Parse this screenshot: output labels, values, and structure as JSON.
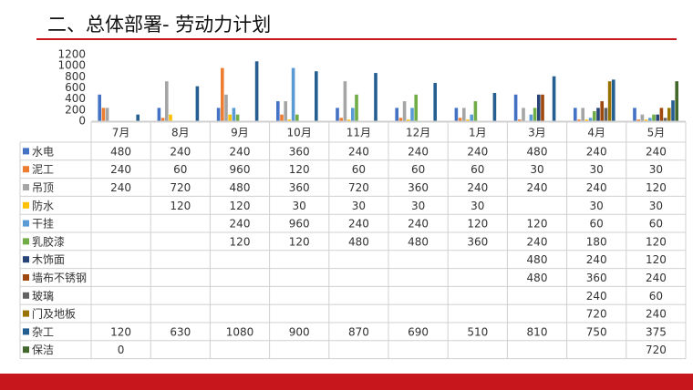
{
  "slide": {
    "title": "二、总体部署- 劳动力计划"
  },
  "chart_data": {
    "type": "bar",
    "categories": [
      "7月",
      "8月",
      "9月",
      "10月",
      "11月",
      "12月",
      "1月",
      "3月",
      "4月",
      "5月"
    ],
    "y_ticks": [
      "0",
      "200",
      "400",
      "600",
      "800",
      "1000",
      "1200"
    ],
    "ylim": [
      0,
      1200
    ],
    "grid": false,
    "legend": "table-left",
    "series": [
      {
        "name": "水电",
        "color": "#4472c4",
        "values": [
          480,
          240,
          240,
          360,
          240,
          240,
          240,
          480,
          240,
          240
        ]
      },
      {
        "name": "泥工",
        "color": "#ed7d31",
        "values": [
          240,
          60,
          960,
          120,
          60,
          60,
          60,
          30,
          30,
          30
        ]
      },
      {
        "name": "吊顶",
        "color": "#a5a5a5",
        "values": [
          240,
          720,
          480,
          360,
          720,
          360,
          240,
          240,
          240,
          120
        ]
      },
      {
        "name": "防水",
        "color": "#ffc000",
        "values": [
          null,
          120,
          120,
          30,
          30,
          30,
          30,
          null,
          30,
          30
        ]
      },
      {
        "name": "干挂",
        "color": "#5b9bd5",
        "values": [
          null,
          null,
          240,
          960,
          240,
          240,
          120,
          120,
          60,
          60
        ]
      },
      {
        "name": "乳胶漆",
        "color": "#70ad47",
        "values": [
          null,
          null,
          120,
          120,
          480,
          480,
          360,
          240,
          180,
          120
        ]
      },
      {
        "name": "木饰面",
        "color": "#264478",
        "values": [
          null,
          null,
          null,
          null,
          null,
          null,
          null,
          480,
          240,
          120
        ]
      },
      {
        "name": "墙布不锈钢",
        "color": "#9e480e",
        "values": [
          null,
          null,
          null,
          null,
          null,
          null,
          null,
          480,
          360,
          240
        ]
      },
      {
        "name": "玻璃",
        "color": "#636363",
        "values": [
          null,
          null,
          null,
          null,
          null,
          null,
          null,
          null,
          240,
          60
        ]
      },
      {
        "name": "门及地板",
        "color": "#997300",
        "values": [
          null,
          null,
          null,
          null,
          null,
          null,
          null,
          null,
          720,
          240
        ]
      },
      {
        "name": "杂工",
        "color": "#255e91",
        "values": [
          120,
          630,
          1080,
          900,
          870,
          690,
          510,
          810,
          750,
          375
        ]
      },
      {
        "name": "保洁",
        "color": "#43682b",
        "values": [
          0,
          null,
          null,
          null,
          null,
          null,
          null,
          null,
          null,
          720
        ]
      }
    ]
  }
}
